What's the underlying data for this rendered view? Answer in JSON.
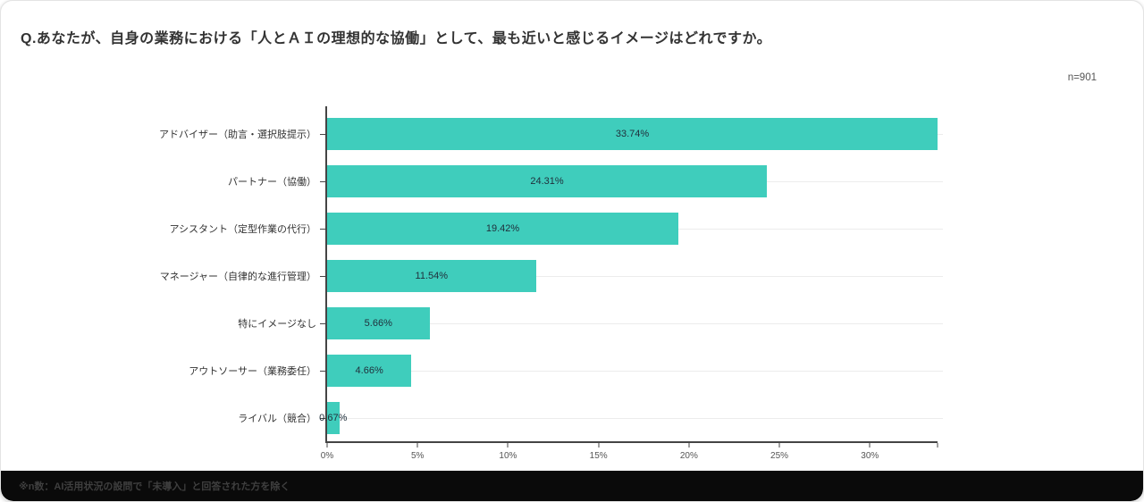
{
  "header": {
    "title": "Q.あなたが、自身の業務における「人とＡＩの理想的な協働」として、最も近いと感じるイメージはどれですか。",
    "sample_note": "n=901"
  },
  "footer": {
    "note": "※n数：AI活用状況の設問で「未導入」と回答された方を除く"
  },
  "colors": {
    "bar": "#3fcdbc",
    "axis": "#444444",
    "grid": "#ececec",
    "footer_bg": "#0a0a0a",
    "footnote_text": "#3f3f3f"
  },
  "chart_data": {
    "type": "bar",
    "orientation": "horizontal",
    "title": "Q.あなたが、自身の業務における「人とＡＩの理想的な協働」として、最も近いと感じるイメージはどれですか。",
    "categories": [
      "アドバイザー（助言・選択肢提示）",
      "パートナー（協働）",
      "アシスタント（定型作業の代行）",
      "マネージャー（自律的な進行管理）",
      "特にイメージなし",
      "アウトソーサー（業務委任）",
      "ライバル（競合）"
    ],
    "values": [
      33.74,
      24.31,
      19.42,
      11.54,
      5.66,
      4.66,
      0.67
    ],
    "value_labels": [
      "33.74%",
      "24.31%",
      "19.42%",
      "11.54%",
      "5.66%",
      "4.66%",
      "0.67%"
    ],
    "x_tick_values": [
      0,
      5,
      10,
      15,
      20,
      25,
      30
    ],
    "x_tick_labels": [
      "0%",
      "5%",
      "10%",
      "15%",
      "20%",
      "25%",
      "30%"
    ],
    "xlim": [
      0,
      33.74
    ],
    "grid": "horizontal",
    "legend": "none",
    "sample_size": "n=901"
  }
}
